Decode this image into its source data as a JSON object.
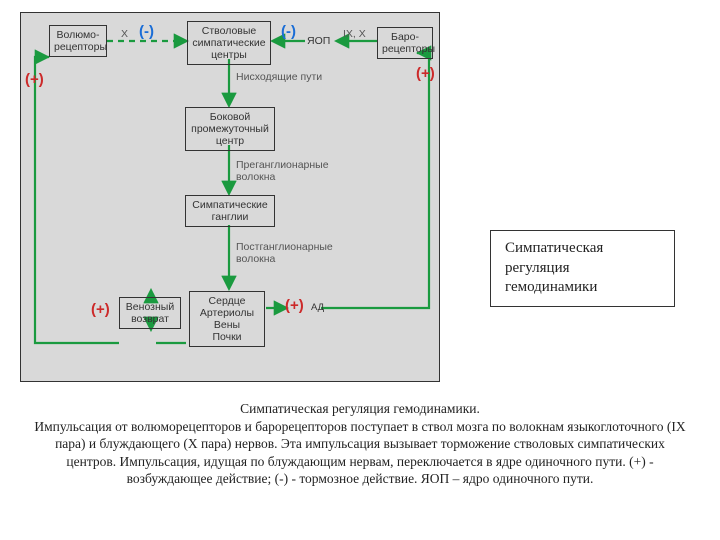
{
  "colors": {
    "box_border": "#333333",
    "text": "#333333",
    "arrow_green": "#1a9a3f",
    "sign_blue": "#1a6dd6",
    "sign_red": "#cc2a2a",
    "panel_bg": "#d9d9d9"
  },
  "nodes": {
    "volumo": "Волюмо-\nрецепторы",
    "brainstem": "Стволовые\nсимпатические\nцентры",
    "yop": "ЯОП",
    "baro": "Баро-\nрецепторы",
    "lateral": "Боковой\nпромежуточный\nцентр",
    "ganglia": "Симпатические\nганглии",
    "venous": "Венозный\nвозврат",
    "targets": "Сердце\nАртериолы\nВены\nПочки",
    "ad": "АД"
  },
  "labels": {
    "x_nerve": "X",
    "ix_x": "IX, X",
    "descending": "Нисходящие пути",
    "pregang": "Преганглионарные\nволокна",
    "postgang": "Постганглионарные\nволокна"
  },
  "signs": {
    "volumo_inhib": "(-)",
    "brainstem_inhib": "(-)",
    "venous_plus_side": "(+)",
    "baro_plus": "(+)",
    "venous_plus": "(+)",
    "ad_plus": "(+)"
  },
  "title": "Симпатическая регуляция гемодинамики",
  "caption": "Симпатическая регуляция гемодинамики.\nИмпульсация от волюморецепторов и барорецепторов поступает в ствол мозга по волокнам языкоглоточного (IX пара) и блуждающего (X пара) нервов. Эта импульсация вызывает торможение стволовых симпатических центров. Импульсация, идущая по блуждающим нервам, переключается в ядре одиночного пути. (+) - возбуждающее действие; (-) - тормозное действие. ЯОП – ядро одиночного пути."
}
